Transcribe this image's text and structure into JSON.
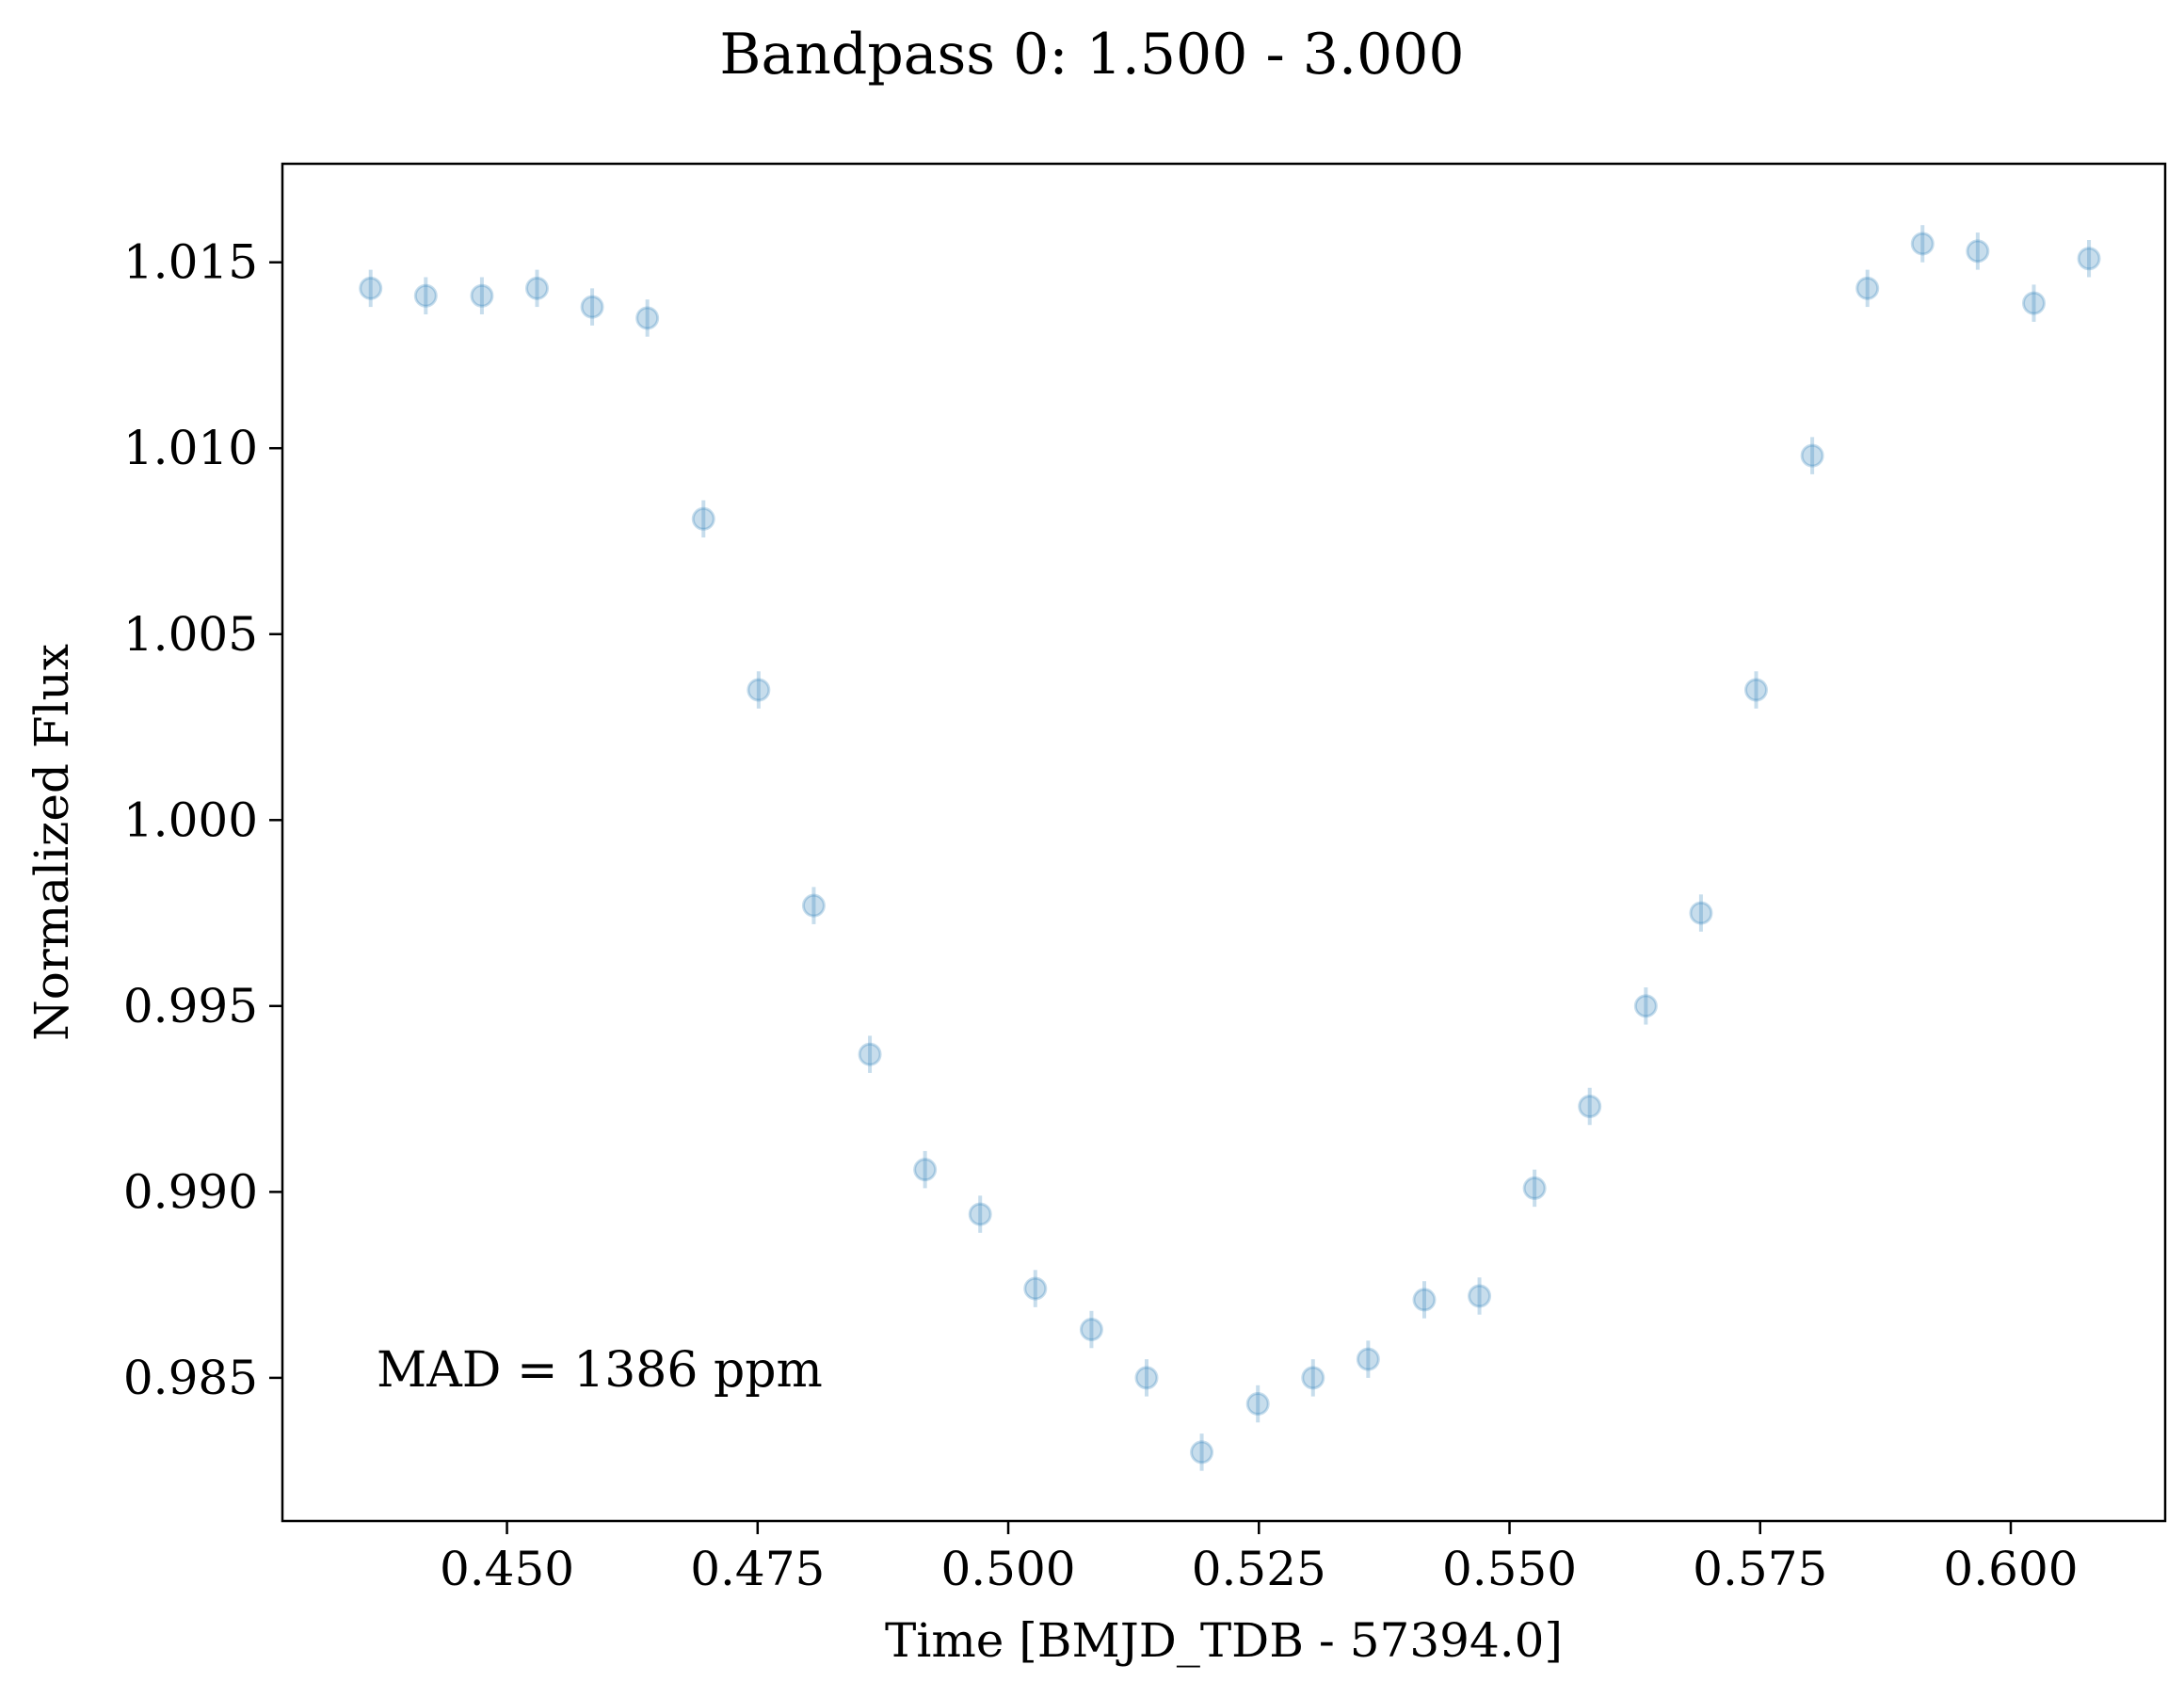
{
  "chart_data": {
    "type": "scatter",
    "title": "Bandpass 0: 1.500 - 3.000",
    "xlabel": "Time [BMJD_TDB - 57394.0]",
    "ylabel": "Normalized Flux",
    "xlim": [
      0.4276,
      0.6154
    ],
    "ylim": [
      0.98115,
      1.01765
    ],
    "xticks": [
      {
        "value": 0.45,
        "label": "0.450"
      },
      {
        "value": 0.475,
        "label": "0.475"
      },
      {
        "value": 0.5,
        "label": "0.500"
      },
      {
        "value": 0.525,
        "label": "0.525"
      },
      {
        "value": 0.55,
        "label": "0.550"
      },
      {
        "value": 0.575,
        "label": "0.575"
      },
      {
        "value": 0.6,
        "label": "0.600"
      }
    ],
    "yticks": [
      {
        "value": 0.985,
        "label": "0.985"
      },
      {
        "value": 0.99,
        "label": "0.990"
      },
      {
        "value": 0.995,
        "label": "0.995"
      },
      {
        "value": 1.0,
        "label": "1.000"
      },
      {
        "value": 1.005,
        "label": "1.005"
      },
      {
        "value": 1.01,
        "label": "1.010"
      },
      {
        "value": 1.015,
        "label": "1.015"
      }
    ],
    "annotation": "MAD = 1386 ppm",
    "marker_color": "#1f77b4",
    "marker_alpha": 0.25,
    "grid": false,
    "series": [
      {
        "points": [
          {
            "x": 0.4364,
            "y": 1.0143,
            "err": 0.0005
          },
          {
            "x": 0.4419,
            "y": 1.0141,
            "err": 0.0005
          },
          {
            "x": 0.4475,
            "y": 1.0141,
            "err": 0.0005
          },
          {
            "x": 0.453,
            "y": 1.0143,
            "err": 0.0005
          },
          {
            "x": 0.4585,
            "y": 1.0138,
            "err": 0.0005
          },
          {
            "x": 0.464,
            "y": 1.0135,
            "err": 0.0005
          },
          {
            "x": 0.4696,
            "y": 1.0081,
            "err": 0.0005
          },
          {
            "x": 0.4751,
            "y": 1.0035,
            "err": 0.0005
          },
          {
            "x": 0.4806,
            "y": 0.9977,
            "err": 0.0005
          },
          {
            "x": 0.4862,
            "y": 0.9937,
            "err": 0.0005
          },
          {
            "x": 0.4917,
            "y": 0.9906,
            "err": 0.0005
          },
          {
            "x": 0.4972,
            "y": 0.9894,
            "err": 0.0005
          },
          {
            "x": 0.5027,
            "y": 0.9874,
            "err": 0.0005
          },
          {
            "x": 0.5083,
            "y": 0.9863,
            "err": 0.0005
          },
          {
            "x": 0.5138,
            "y": 0.985,
            "err": 0.0005
          },
          {
            "x": 0.5193,
            "y": 0.983,
            "err": 0.0005
          },
          {
            "x": 0.5249,
            "y": 0.9843,
            "err": 0.0005
          },
          {
            "x": 0.5304,
            "y": 0.985,
            "err": 0.0005
          },
          {
            "x": 0.5359,
            "y": 0.9855,
            "err": 0.0005
          },
          {
            "x": 0.5415,
            "y": 0.9871,
            "err": 0.0005
          },
          {
            "x": 0.547,
            "y": 0.9872,
            "err": 0.0005
          },
          {
            "x": 0.5525,
            "y": 0.9901,
            "err": 0.0005
          },
          {
            "x": 0.558,
            "y": 0.9923,
            "err": 0.0005
          },
          {
            "x": 0.5636,
            "y": 0.995,
            "err": 0.0005
          },
          {
            "x": 0.5691,
            "y": 0.9975,
            "err": 0.0005
          },
          {
            "x": 0.5746,
            "y": 1.0035,
            "err": 0.0005
          },
          {
            "x": 0.5802,
            "y": 1.0098,
            "err": 0.0005
          },
          {
            "x": 0.5857,
            "y": 1.0143,
            "err": 0.0005
          },
          {
            "x": 0.5912,
            "y": 1.0155,
            "err": 0.0005
          },
          {
            "x": 0.5967,
            "y": 1.0153,
            "err": 0.0005
          },
          {
            "x": 0.6023,
            "y": 1.0139,
            "err": 0.0005
          },
          {
            "x": 0.6078,
            "y": 1.0151,
            "err": 0.0005
          }
        ]
      }
    ]
  }
}
